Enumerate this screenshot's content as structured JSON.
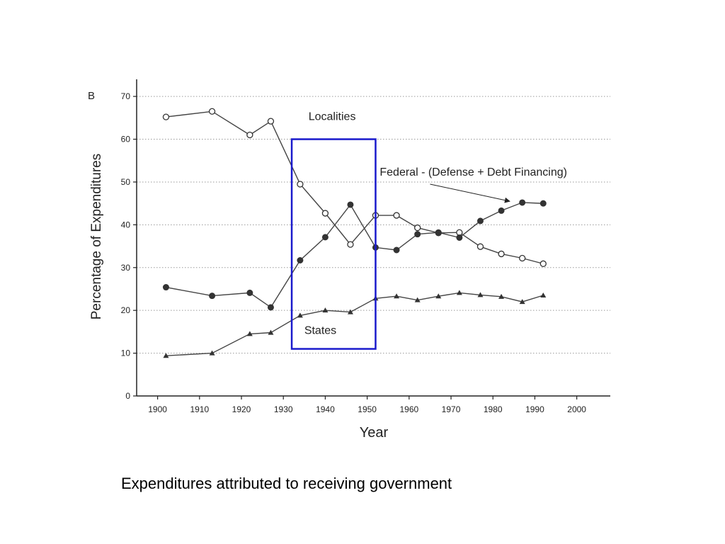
{
  "panel_label": "B",
  "caption": "Expenditures attributed to receiving government",
  "colors": {
    "axis": "#222222",
    "grid": "#9a9a9a",
    "line": "#444444",
    "highlight_box": "#1a1acc"
  },
  "highlight": {
    "x_range": [
      1932,
      1952
    ],
    "y_range": [
      11,
      60
    ]
  },
  "chart_data": {
    "type": "line",
    "xlabel": "Year",
    "ylabel": "Percentage of Expenditures",
    "xlim": [
      1895,
      2008
    ],
    "ylim": [
      0,
      73
    ],
    "xticks": [
      1900,
      1910,
      1920,
      1930,
      1940,
      1950,
      1960,
      1970,
      1980,
      1990,
      2000
    ],
    "yticks": [
      0,
      10,
      20,
      30,
      40,
      50,
      60,
      70
    ],
    "grid": "horizontal dotted",
    "series": [
      {
        "name": "Localities",
        "marker": "open-circle",
        "x": [
          1902,
          1913,
          1922,
          1927,
          1934,
          1940,
          1946,
          1952,
          1957,
          1962,
          1967,
          1972,
          1977,
          1982,
          1987,
          1992
        ],
        "y": [
          65.2,
          66.5,
          61.0,
          64.2,
          49.5,
          42.7,
          35.4,
          42.2,
          42.2,
          39.3,
          38.1,
          38.2,
          34.9,
          33.2,
          32.2,
          30.9
        ]
      },
      {
        "name": "Federal - (Defense + Debt Financing)",
        "marker": "filled-circle",
        "x": [
          1902,
          1913,
          1922,
          1927,
          1934,
          1940,
          1946,
          1952,
          1957,
          1962,
          1967,
          1972,
          1977,
          1982,
          1987,
          1992
        ],
        "y": [
          25.4,
          23.4,
          24.1,
          20.7,
          31.7,
          37.1,
          44.7,
          34.7,
          34.1,
          37.8,
          38.2,
          37.0,
          40.9,
          43.3,
          45.2,
          45.0
        ]
      },
      {
        "name": "States",
        "marker": "filled-triangle",
        "x": [
          1902,
          1913,
          1922,
          1927,
          1934,
          1940,
          1946,
          1952,
          1957,
          1962,
          1967,
          1972,
          1977,
          1982,
          1987,
          1992
        ],
        "y": [
          9.4,
          10.0,
          14.5,
          14.8,
          18.8,
          20.0,
          19.6,
          22.8,
          23.3,
          22.4,
          23.3,
          24.1,
          23.6,
          23.2,
          22.0,
          23.5
        ]
      }
    ],
    "annotations": [
      {
        "text": "Localities",
        "x": 1936,
        "y": 64.5
      },
      {
        "text": "States",
        "x": 1935,
        "y": 14.5
      },
      {
        "text": "Federal - (Defense + Debt Financing)",
        "x": 1953,
        "y": 51.5,
        "arrow_to": [
          1984,
          45.5
        ]
      }
    ]
  }
}
